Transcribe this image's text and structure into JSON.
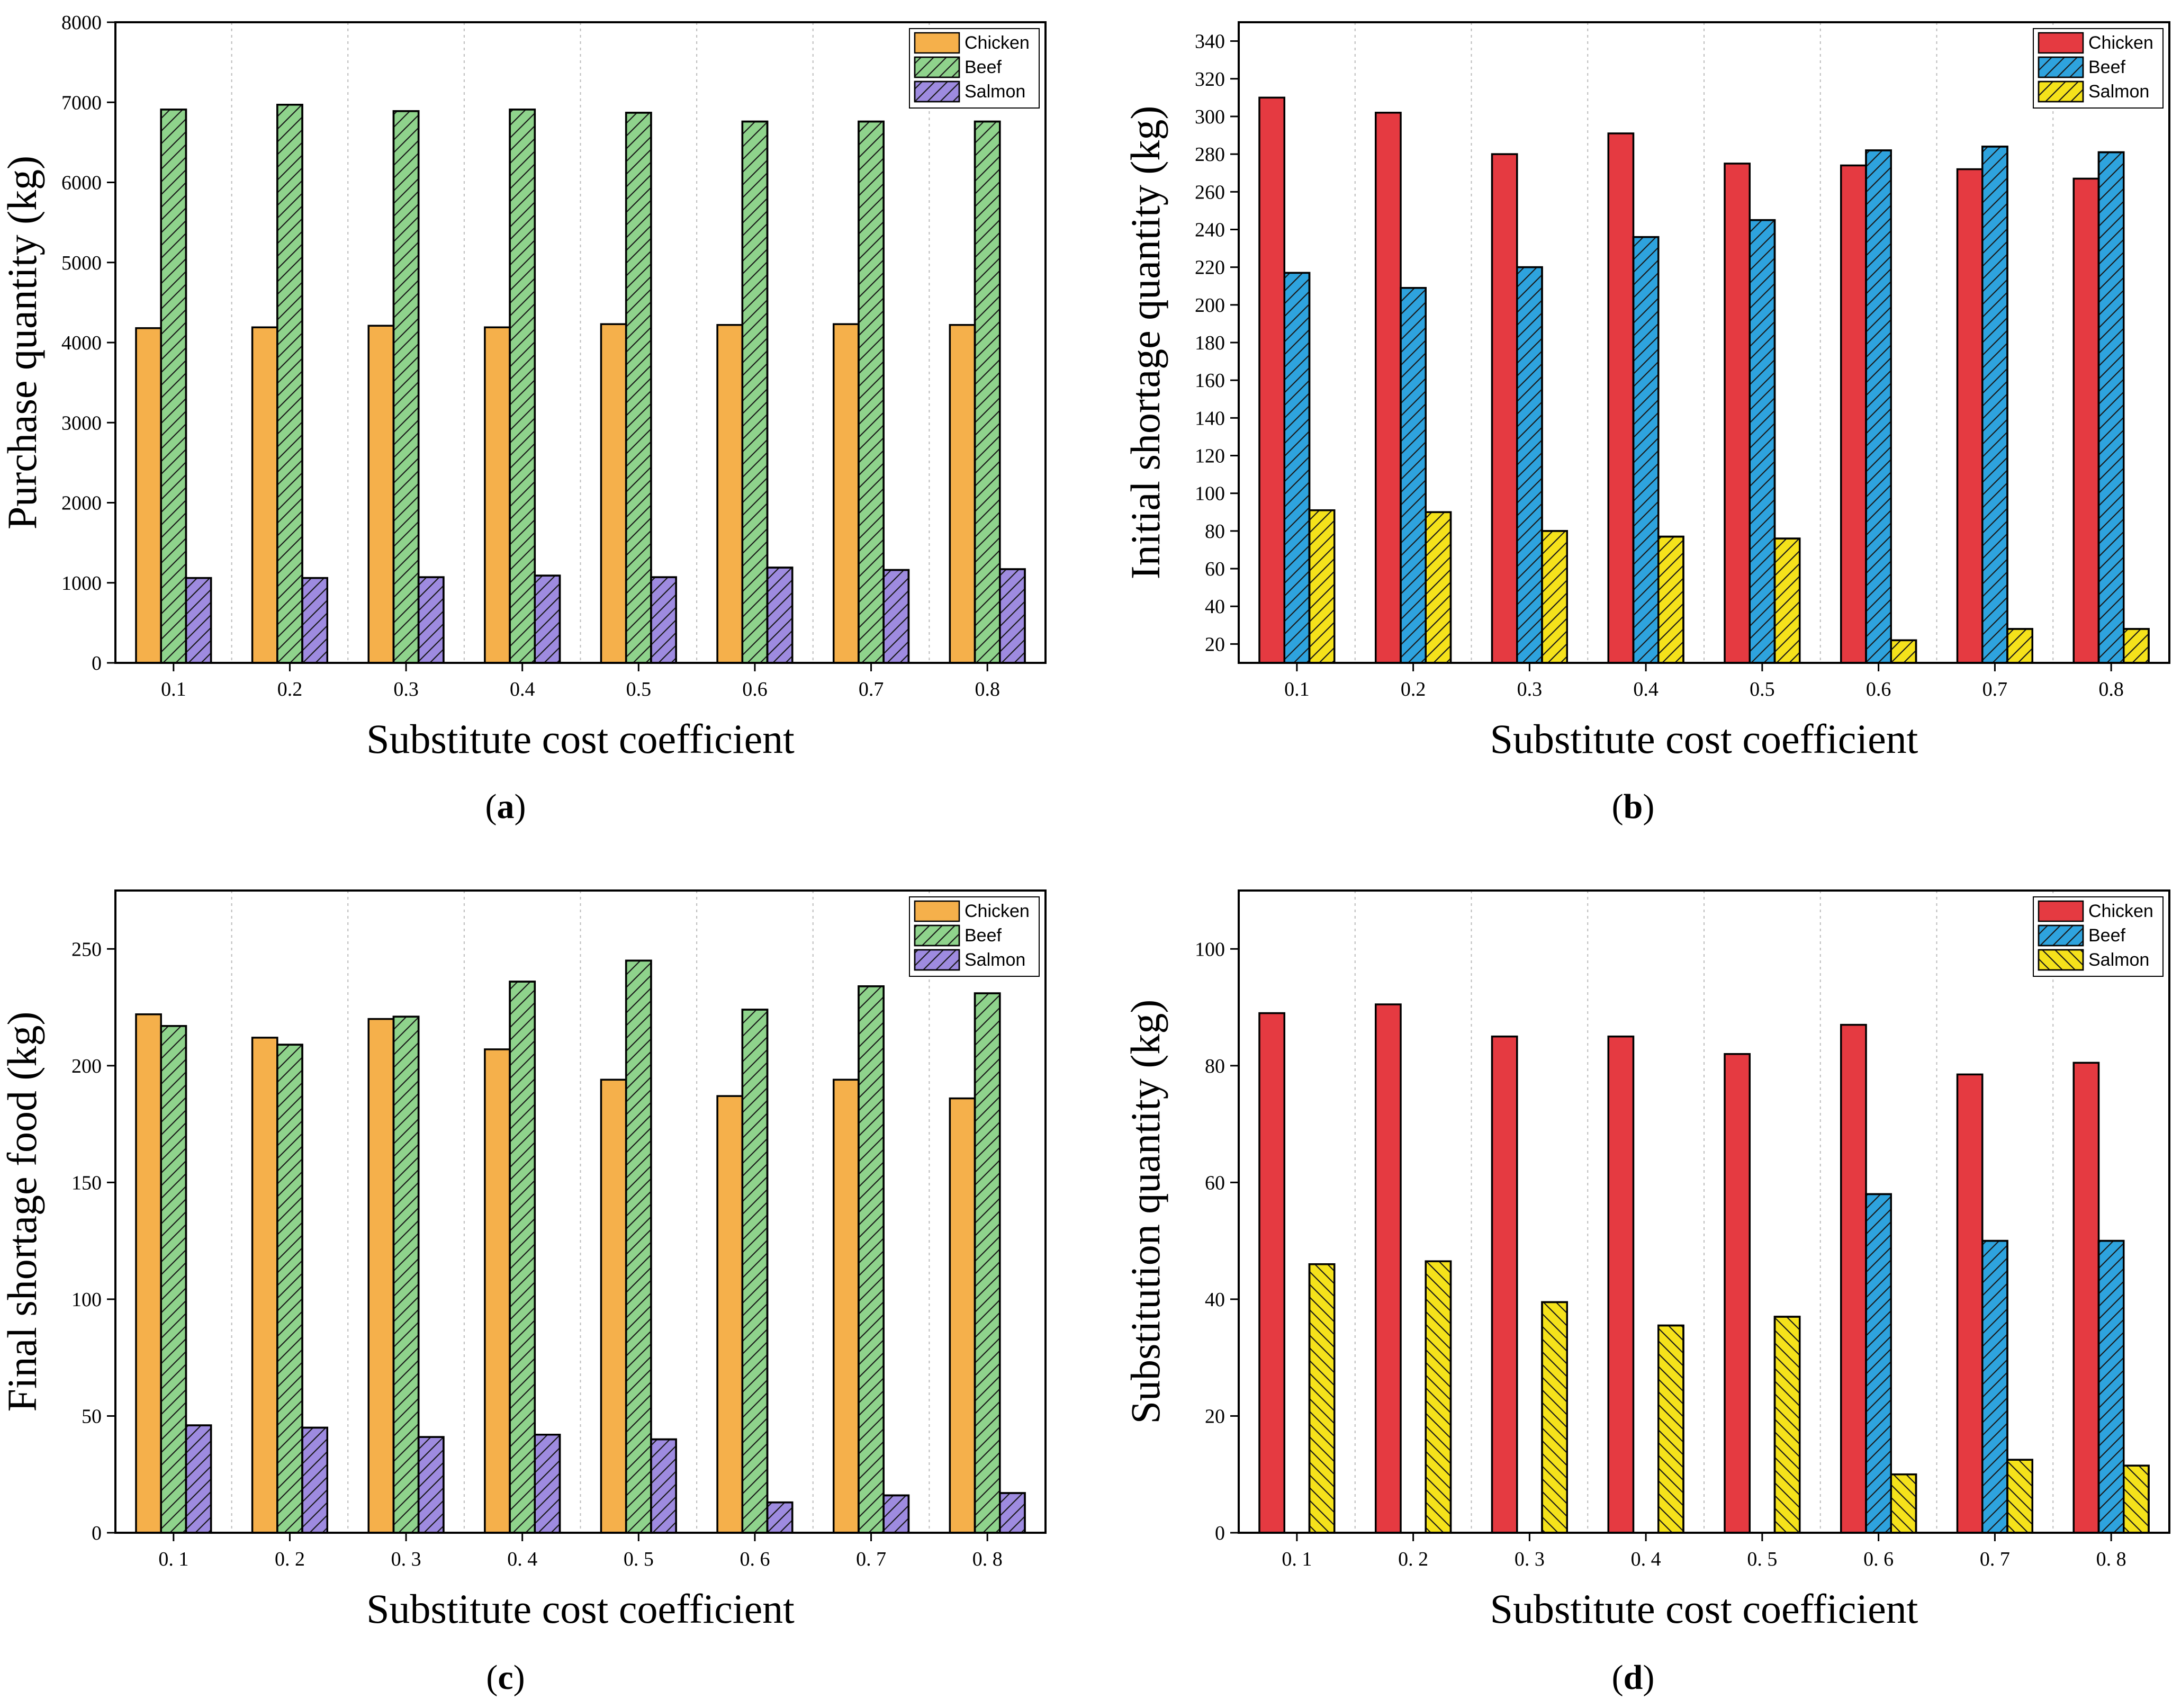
{
  "figure": {
    "colors": {
      "chicken_a": "#F5B04B",
      "beef_a": "#8FD38C",
      "salmon_a": "#9E8BE0",
      "chicken_b": "#E53A41",
      "beef_b": "#2EA3DE",
      "salmon_b": "#F5E21B",
      "frame": "#000000",
      "grid": "#BBBBBB"
    }
  },
  "chart_data": [
    {
      "type": "bar",
      "panel_label": "a",
      "xlabel": "Substitute cost coefficient",
      "ylabel": "Purchase quantity (kg)",
      "categories": [
        "0.1",
        "0.2",
        "0.3",
        "0.4",
        "0.5",
        "0.6",
        "0.7",
        "0.8"
      ],
      "ylim": [
        0,
        8000
      ],
      "yticks": [
        0,
        1000,
        2000,
        3000,
        4000,
        5000,
        6000,
        7000,
        8000
      ],
      "ytick_labels": [
        "0",
        "1000",
        "2000",
        "3000",
        "4000",
        "5000",
        "6000",
        "7000",
        "8000"
      ],
      "grid": "vertical-dotted",
      "legend_position": "top-right",
      "series": [
        {
          "name": "Chicken",
          "color": "#F5B04B",
          "hatch": false,
          "values": [
            4180,
            4190,
            4210,
            4190,
            4230,
            4220,
            4230,
            4220
          ]
        },
        {
          "name": "Beef",
          "color": "#8FD38C",
          "hatch": true,
          "values": [
            6910,
            6970,
            6890,
            6910,
            6870,
            6760,
            6760,
            6760
          ]
        },
        {
          "name": "Salmon",
          "color": "#9E8BE0",
          "hatch": true,
          "values": [
            1060,
            1060,
            1070,
            1090,
            1070,
            1190,
            1160,
            1170
          ]
        }
      ]
    },
    {
      "type": "bar",
      "panel_label": "b",
      "xlabel": "Substitute cost coefficient",
      "ylabel": "Initial shortage quantity (kg)",
      "categories": [
        "0.1",
        "0.2",
        "0.3",
        "0.4",
        "0.5",
        "0.6",
        "0.7",
        "0.8"
      ],
      "ylim": [
        10,
        350
      ],
      "yticks": [
        20,
        40,
        60,
        80,
        100,
        120,
        140,
        160,
        180,
        200,
        220,
        240,
        260,
        280,
        300,
        320,
        340
      ],
      "ytick_labels": [
        "20",
        "40",
        "60",
        "80",
        "100",
        "120",
        "140",
        "160",
        "180",
        "200",
        "220",
        "240",
        "260",
        "280",
        "300",
        "320",
        "340"
      ],
      "grid": "vertical-dotted",
      "legend_position": "top-right",
      "series": [
        {
          "name": "Chicken",
          "color": "#E53A41",
          "hatch": false,
          "values": [
            310,
            302,
            280,
            291,
            275,
            274,
            272,
            267
          ]
        },
        {
          "name": "Beef",
          "color": "#2EA3DE",
          "hatch": true,
          "values": [
            217,
            209,
            220,
            236,
            245,
            282,
            284,
            281
          ]
        },
        {
          "name": "Salmon",
          "color": "#F5E21B",
          "hatch": true,
          "values": [
            91,
            90,
            80,
            77,
            76,
            22,
            28,
            28
          ]
        }
      ]
    },
    {
      "type": "bar",
      "panel_label": "c",
      "xlabel": "Substitute cost coefficient",
      "ylabel": "Final shortage food (kg)",
      "categories": [
        "0. 1",
        "0. 2",
        "0. 3",
        "0. 4",
        "0. 5",
        "0. 6",
        "0. 7",
        "0. 8"
      ],
      "ylim": [
        0,
        275
      ],
      "yticks": [
        0,
        50,
        100,
        150,
        200,
        250
      ],
      "ytick_labels": [
        "0",
        "50",
        "100",
        "150",
        "200",
        "250"
      ],
      "grid": "vertical-dotted",
      "legend_position": "top-right",
      "series": [
        {
          "name": "Chicken",
          "color": "#F5B04B",
          "hatch": false,
          "values": [
            222,
            212,
            220,
            207,
            194,
            187,
            194,
            186
          ]
        },
        {
          "name": "Beef",
          "color": "#8FD38C",
          "hatch": true,
          "values": [
            217,
            209,
            221,
            236,
            245,
            224,
            234,
            231
          ]
        },
        {
          "name": "Salmon",
          "color": "#9E8BE0",
          "hatch": true,
          "values": [
            46,
            45,
            41,
            42,
            40,
            13,
            16,
            17
          ]
        }
      ]
    },
    {
      "type": "bar",
      "panel_label": "d",
      "xlabel": "Substitute cost coefficient",
      "ylabel": "Substitution quantity (kg)",
      "categories": [
        "0. 1",
        "0. 2",
        "0. 3",
        "0. 4",
        "0. 5",
        "0. 6",
        "0. 7",
        "0. 8"
      ],
      "ylim": [
        0,
        110
      ],
      "yticks": [
        0,
        20,
        40,
        60,
        80,
        100
      ],
      "ytick_labels": [
        "0",
        "20",
        "40",
        "60",
        "80",
        "100"
      ],
      "grid": "vertical-dotted",
      "legend_position": "top-right",
      "series": [
        {
          "name": "Chicken",
          "color": "#E53A41",
          "hatch": false,
          "values": [
            89,
            90.5,
            85,
            85,
            82,
            87,
            78.5,
            80.5
          ]
        },
        {
          "name": "Beef",
          "color": "#2EA3DE",
          "hatch": true,
          "values": [
            0,
            0,
            0,
            0,
            0,
            58,
            50,
            50
          ]
        },
        {
          "name": "Salmon",
          "color": "#F5E21B",
          "hatch": true,
          "hatch_dir": "back",
          "values": [
            46,
            46.5,
            39.5,
            35.5,
            37,
            10,
            12.5,
            11.5
          ]
        }
      ]
    }
  ]
}
